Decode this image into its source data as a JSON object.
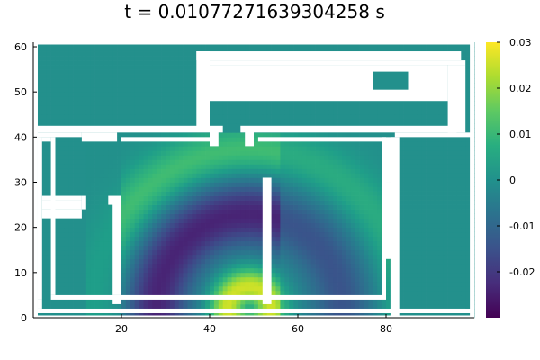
{
  "chart_data": {
    "type": "heatmap",
    "title": "t = 0.01077271639304258 s",
    "xlabel": "",
    "ylabel": "",
    "xlim": [
      0,
      100
    ],
    "ylim": [
      0,
      61
    ],
    "x_ticks": [
      20,
      40,
      60,
      80
    ],
    "y_ticks": [
      0,
      10,
      20,
      30,
      40,
      50,
      60
    ],
    "colorbar": {
      "colormap": "viridis",
      "clim": [
        -0.03,
        0.03
      ],
      "ticks": [
        0.03,
        0.02,
        0.01,
        0,
        -0.01,
        -0.02
      ],
      "tick_labels": [
        "0.03",
        "0.02",
        "0.01",
        "0",
        "-0.01",
        "-0.02"
      ]
    },
    "wave_source": [
      49,
      2
    ],
    "grid": false,
    "legend": "none"
  }
}
